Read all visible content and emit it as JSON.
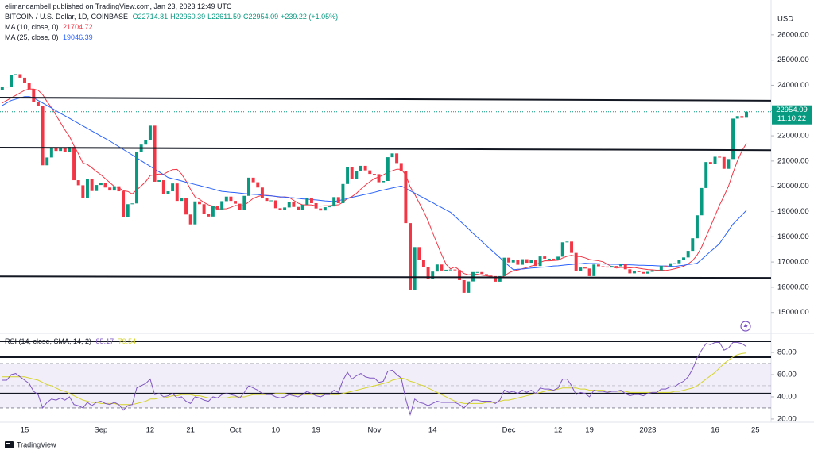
{
  "chart_data": {
    "type": "candlestick",
    "attribution": "elimandambell published on TradingView.com, Jan 23, 2023 12:49 UTC",
    "title": "BITCOIN / U.S. Dollar, 1D, COINBASE",
    "ohlc_text": [
      "O22714.81",
      "H22960.39",
      "L22611.59",
      "C22954.09",
      "+239.22 (+1.05%)"
    ],
    "y_label": "USD",
    "countdown": "11:10:22",
    "logo": "TradingView",
    "up_color": "#089981",
    "down_color": "#f23645",
    "categories": [
      null,
      null,
      null,
      null,
      null,
      "15",
      null,
      null,
      null,
      null,
      null,
      null,
      null,
      null,
      null,
      null,
      null,
      null,
      null,
      null,
      null,
      null,
      "Sep",
      null,
      null,
      null,
      null,
      null,
      null,
      null,
      null,
      null,
      null,
      "12",
      null,
      null,
      null,
      null,
      null,
      null,
      null,
      null,
      "21",
      null,
      null,
      null,
      null,
      null,
      null,
      null,
      null,
      null,
      "Oct",
      null,
      null,
      null,
      null,
      null,
      null,
      null,
      null,
      "10",
      null,
      null,
      null,
      null,
      null,
      null,
      null,
      null,
      "19",
      null,
      null,
      null,
      null,
      null,
      null,
      null,
      null,
      null,
      null,
      null,
      null,
      "Nov",
      null,
      null,
      null,
      null,
      null,
      null,
      null,
      null,
      null,
      null,
      null,
      null,
      "14",
      null,
      null,
      null,
      null,
      null,
      null,
      null,
      null,
      null,
      null,
      null,
      null,
      null,
      null,
      null,
      null,
      "Dec",
      null,
      null,
      null,
      null,
      null,
      null,
      null,
      null,
      null,
      null,
      "12",
      null,
      null,
      null,
      null,
      null,
      null,
      "19",
      null,
      null,
      null,
      null,
      null,
      null,
      null,
      null,
      null,
      null,
      null,
      null,
      "2023",
      null,
      null,
      null,
      null,
      null,
      null,
      null,
      null,
      null,
      null,
      null,
      null,
      null,
      null,
      "16",
      null,
      null,
      null,
      null,
      null,
      null,
      null,
      null,
      "25"
    ],
    "open": [
      23800,
      23950,
      23940,
      24400,
      24440,
      24300,
      24100,
      23850,
      23340,
      23190,
      20830,
      21140,
      21520,
      21400,
      21530,
      21370,
      21560,
      20240,
      20040,
      19550,
      20290,
      19810,
      20050,
      20130,
      19950,
      19830,
      20000,
      19800,
      18790,
      19290,
      19320,
      21360,
      21650,
      21830,
      22400,
      20180,
      20240,
      19700,
      19800,
      20110,
      19420,
      19540,
      18880,
      18490,
      19400,
      19290,
      18920,
      18800,
      19220,
      19080,
      19410,
      19590,
      19420,
      19310,
      19060,
      19620,
      20340,
      20160,
      19950,
      19530,
      19420,
      19440,
      19130,
      19060,
      19160,
      19380,
      19180,
      19070,
      19270,
      19550,
      19330,
      19120,
      19040,
      19170,
      19200,
      19570,
      19330,
      20090,
      20770,
      20290,
      20600,
      20810,
      20630,
      20490,
      20480,
      20160,
      20210,
      21150,
      21300,
      20920,
      20600,
      18540,
      15880,
      17590,
      17070,
      16810,
      16330,
      16620,
      16900,
      16660,
      16690,
      16700,
      16680,
      16280,
      15780,
      16230,
      16600,
      16600,
      16520,
      16460,
      16440,
      16220,
      16440,
      17170,
      16980,
      17090,
      16890,
      17110,
      16970,
      17090,
      16840,
      17220,
      17130,
      17130,
      17090,
      17210,
      17780,
      17810,
      17360,
      16630,
      16780,
      16740,
      16440,
      16900,
      16830,
      16820,
      16780,
      16840,
      16830,
      16920,
      16710,
      16550,
      16630,
      16600,
      16540,
      16610,
      16670,
      16670,
      16850,
      16830,
      16950,
      16950,
      17090,
      17180,
      17440,
      17940,
      18850,
      19930,
      20960,
      20880,
      21170,
      21160,
      20690,
      21080,
      22680,
      22780,
      22714.81,
      null,
      null
    ],
    "close": [
      23950,
      23940,
      24400,
      24440,
      24300,
      24100,
      23850,
      23340,
      23190,
      20830,
      21140,
      21520,
      21400,
      21530,
      21370,
      21560,
      20240,
      20040,
      19550,
      20290,
      19810,
      20050,
      20130,
      19950,
      19830,
      20000,
      19800,
      18790,
      19290,
      19320,
      21360,
      21650,
      21830,
      22400,
      20180,
      20240,
      19700,
      19800,
      20110,
      19420,
      19540,
      18880,
      18490,
      19400,
      19290,
      18920,
      18800,
      19220,
      19080,
      19410,
      19590,
      19420,
      19310,
      19060,
      19620,
      20340,
      20160,
      19950,
      19530,
      19420,
      19440,
      19130,
      19060,
      19160,
      19380,
      19180,
      19070,
      19270,
      19550,
      19330,
      19120,
      19040,
      19170,
      19200,
      19570,
      19330,
      20090,
      20770,
      20290,
      20600,
      20810,
      20630,
      20490,
      20480,
      20160,
      20210,
      21150,
      21300,
      20920,
      20600,
      18540,
      15880,
      17590,
      17070,
      16810,
      16330,
      16620,
      16900,
      16660,
      16690,
      16700,
      16680,
      16280,
      15780,
      16230,
      16600,
      16600,
      16520,
      16460,
      16440,
      16220,
      16440,
      17170,
      16980,
      17090,
      16890,
      17110,
      16970,
      17090,
      16840,
      17220,
      17130,
      17130,
      17090,
      17210,
      17780,
      17810,
      17360,
      16630,
      16780,
      16740,
      16440,
      16900,
      16830,
      16820,
      16780,
      16840,
      16830,
      16920,
      16710,
      16550,
      16630,
      16600,
      16540,
      16610,
      16670,
      16670,
      16850,
      16830,
      16950,
      16950,
      17090,
      17180,
      17440,
      17940,
      18850,
      19930,
      20960,
      20880,
      21170,
      21160,
      20690,
      21080,
      22680,
      22780,
      22710,
      22954.09,
      null,
      null
    ],
    "series": [
      {
        "name": "MA (10, close, 0)",
        "color": "#f23645",
        "values": [
          23300,
          23400,
          23500,
          23600,
          23700,
          23800,
          23850,
          23850,
          23800,
          23634,
          23353,
          23111,
          22811,
          22520,
          22227,
          21973,
          21612,
          21282,
          20918,
          20864,
          20731,
          20584,
          20457,
          20299,
          20145,
          19989,
          19945,
          19820,
          19794,
          19697,
          19852,
          20012,
          20182,
          20427,
          20462,
          20486,
          20476,
          20577,
          20659,
          20669,
          20487,
          20210,
          19876,
          19576,
          19487,
          19355,
          19265,
          19207,
          19104,
          19103,
          19108,
          19162,
          19244,
          19210,
          19243,
          19385,
          19521,
          19594,
          19639,
          19640,
          19625,
          19596,
          19571,
          19581,
          19557,
          19441,
          19332,
          19264,
          19266,
          19257,
          19225,
          19216,
          19227,
          19231,
          19250,
          19265,
          19367,
          19517,
          19591,
          19718,
          19887,
          20046,
          20178,
          20306,
          20365,
          20453,
          20559,
          20612,
          20675,
          20675,
          20448,
          19973,
          19683,
          19342,
          19007,
          18619,
          18166,
          17726,
          17300,
          16909,
          16725,
          16805,
          16674,
          16545,
          16487,
          16514,
          16512,
          16474,
          16454,
          16429,
          16381,
          16357,
          16446,
          16566,
          16652,
          16681,
          16732,
          16777,
          16840,
          16880,
          16980,
          17049,
          17045,
          17056,
          17068,
          17157,
          17227,
          17266,
          17220,
          17214,
          17166,
          17097,
          17074,
          17048,
          17009,
          16909,
          16812,
          16759,
          16788,
          16781,
          16762,
          16781,
          16751,
          16722,
          16701,
          16690,
          16673,
          16675,
          16666,
          16690,
          16730,
          16776,
          16834,
          16924,
          17057,
          17275,
          17593,
          18004,
          18409,
          18831,
          19252,
          19612,
          20002,
          20526,
          21010,
          21396,
          21704.72,
          null,
          null
        ]
      },
      {
        "name": "MA (25, close, 0)",
        "color": "#2962ff",
        "values": [
          23200,
          23300,
          23400,
          23450,
          23500,
          23550,
          23550,
          23500,
          23400,
          23300,
          23200,
          23100,
          22990,
          22890,
          22790,
          22690,
          22590,
          22490,
          22390,
          22290,
          22190,
          22090,
          21990,
          21890,
          21790,
          21680,
          21570,
          21460,
          21350,
          21240,
          21130,
          21010,
          20900,
          20790,
          20680,
          20570,
          20460,
          20348,
          20300,
          20260,
          20210,
          20160,
          20120,
          20070,
          20030,
          19980,
          19940,
          19890,
          19840,
          19797,
          19780,
          19760,
          19750,
          19730,
          19710,
          19700,
          19680,
          19670,
          19650,
          19630,
          19620,
          19600,
          19580,
          19570,
          19550,
          19540,
          19520,
          19500,
          19490,
          19470,
          19460,
          19440,
          19420,
          19410,
          19390,
          19430,
          19470,
          19510,
          19560,
          19600,
          19640,
          19680,
          19720,
          19760,
          19810,
          19850,
          19890,
          19930,
          19970,
          20013,
          19920,
          19820,
          19730,
          19630,
          19540,
          19440,
          19350,
          19250,
          19160,
          19060,
          18972,
          18810,
          18640,
          18480,
          18310,
          18140,
          17980,
          17812,
          17650,
          17490,
          17330,
          17170,
          17010,
          16850,
          16691,
          16710,
          16720,
          16740,
          16760,
          16770,
          16790,
          16800,
          16820,
          16840,
          16850,
          16870,
          16890,
          16900,
          16920,
          16930,
          16950,
          16940,
          16940,
          16930,
          16920,
          16920,
          16910,
          16910,
          16900,
          16890,
          16890,
          16880,
          16870,
          16870,
          16860,
          16860,
          16850,
          16840,
          16840,
          16830,
          16820,
          16850,
          16870,
          16900,
          16920,
          16950,
          17100,
          17260,
          17420,
          17570,
          17730,
          17990,
          18240,
          18500,
          18680,
          18860,
          19046.39,
          null,
          null
        ]
      }
    ],
    "ylim": [
      14330,
      26750
    ],
    "yticks": [
      {
        "value": 15000,
        "label": "15000.00"
      },
      {
        "value": 16000,
        "label": "16000.00"
      },
      {
        "value": 17000,
        "label": "17000.00"
      },
      {
        "value": 18000,
        "label": "18000.00"
      },
      {
        "value": 19000,
        "label": "19000.00"
      },
      {
        "value": 20000,
        "label": "20000.00"
      },
      {
        "value": 21000,
        "label": "21000.00"
      },
      {
        "value": 22000,
        "label": "22000.00"
      },
      {
        "value": 23000,
        "label": "23000.00"
      },
      {
        "value": 24000,
        "label": "24000.00"
      },
      {
        "value": 25000,
        "label": "25000.00"
      },
      {
        "value": 26000,
        "label": "26000.00"
      }
    ],
    "levels": [
      [
        23510,
        23390
      ],
      [
        21530,
        21430
      ],
      [
        16430,
        16370
      ]
    ],
    "rsi": {
      "name": "RSI (14, close, SMA, 14, 2)",
      "color": "#7e57c2",
      "values": [
        55,
        55,
        60,
        61,
        58,
        55,
        52,
        45,
        42,
        30,
        35,
        38,
        37,
        39,
        37,
        40,
        33,
        32,
        30,
        35,
        32,
        35,
        36,
        34,
        33,
        35,
        33,
        28,
        32,
        33,
        48,
        50,
        52,
        56,
        42,
        43,
        40,
        41,
        43,
        39,
        40,
        36,
        34,
        40,
        39,
        37,
        36,
        40,
        39,
        42,
        43,
        42,
        41,
        39,
        44,
        50,
        48,
        46,
        43,
        42,
        42,
        40,
        39,
        40,
        42,
        41,
        40,
        42,
        45,
        43,
        41,
        40,
        42,
        42,
        46,
        44,
        55,
        62,
        56,
        59,
        61,
        58,
        57,
        57,
        53,
        54,
        63,
        64,
        60,
        57,
        38,
        24,
        38,
        35,
        34,
        32,
        34,
        36,
        35,
        35,
        35,
        35,
        33,
        30,
        34,
        37,
        37,
        36,
        36,
        36,
        34,
        37,
        46,
        44,
        45,
        43,
        46,
        44,
        46,
        43,
        48,
        47,
        47,
        46,
        48,
        56,
        56,
        50,
        42,
        44,
        43,
        40,
        46,
        45,
        45,
        44,
        45,
        45,
        46,
        43,
        41,
        42,
        42,
        41,
        43,
        44,
        44,
        47,
        47,
        49,
        49,
        52,
        54,
        58,
        65,
        75,
        82,
        88,
        87,
        89,
        89,
        82,
        84,
        89,
        89,
        88,
        85.17,
        null,
        null
      ],
      "ma": {
        "color": "#d4d42a",
        "values": [
          58,
          58,
          58,
          58,
          58,
          58,
          57,
          56,
          55,
          53,
          51,
          50,
          48,
          46,
          45,
          43,
          41,
          39,
          37,
          36,
          35,
          35,
          34,
          34,
          34,
          34,
          33,
          33,
          33,
          33,
          34,
          35,
          36,
          38,
          38,
          39,
          39,
          40,
          41,
          41,
          42,
          42,
          42,
          41,
          41,
          40,
          39,
          39,
          39,
          39,
          39,
          40,
          40,
          40,
          40,
          41,
          42,
          42,
          42,
          42,
          42,
          43,
          43,
          43,
          42,
          42,
          42,
          42,
          42,
          42,
          42,
          42,
          42,
          42,
          42,
          42,
          43,
          44,
          45,
          46,
          47,
          48,
          49,
          50,
          51,
          52,
          53,
          55,
          56,
          57,
          56,
          54,
          53,
          51,
          50,
          48,
          46,
          44,
          42,
          40,
          38,
          36,
          35,
          34,
          34,
          34,
          34,
          34,
          35,
          35,
          35,
          36,
          37,
          37,
          38,
          39,
          40,
          41,
          42,
          43,
          44,
          45,
          46,
          46,
          47,
          48,
          48,
          48,
          48,
          47,
          47,
          46,
          46,
          46,
          46,
          45,
          45,
          45,
          45,
          45,
          44,
          44,
          44,
          44,
          44,
          44,
          44,
          44,
          44,
          44,
          45,
          45,
          46,
          47,
          48,
          50,
          53,
          56,
          59,
          62,
          66,
          70,
          73,
          76,
          78,
          79,
          79.54,
          null,
          null
        ]
      },
      "ylim": [
        17.1,
        93.6
      ],
      "yticks": [
        {
          "value": 20,
          "label": "20.00"
        },
        {
          "value": 40,
          "label": "40.00"
        },
        {
          "value": 60,
          "label": "60.00"
        },
        {
          "value": 80,
          "label": "80.00"
        }
      ],
      "bands": [
        70,
        30
      ],
      "midline": 50,
      "levels": [
        90,
        75.7,
        42.9
      ]
    }
  }
}
